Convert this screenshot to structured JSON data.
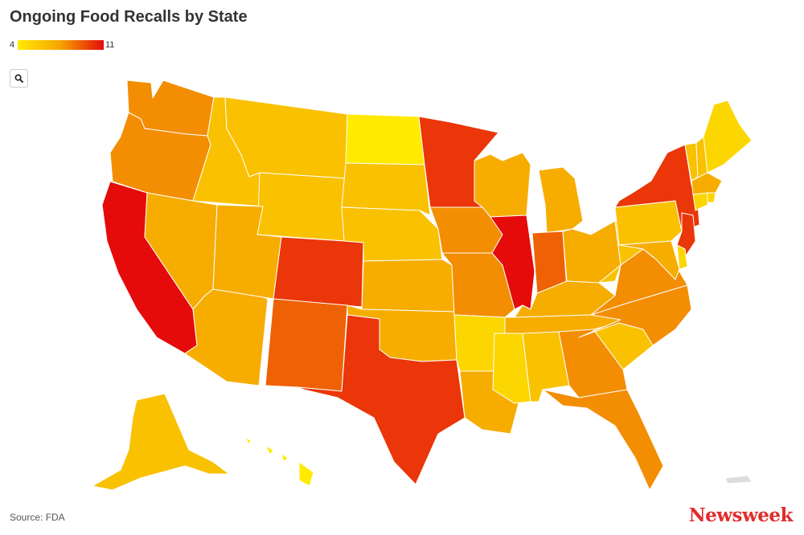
{
  "header": {
    "title": "Ongoing Food Recalls by State"
  },
  "legend": {
    "min_label": "4",
    "max_label": "11",
    "color_low": "#ffea00",
    "color_mid": "#f5a300",
    "color_high": "#e50b0b"
  },
  "toolbar": {
    "search_icon": "magnifier-icon"
  },
  "footer": {
    "source": "Source: FDA",
    "brand": "Newsweek",
    "brand_color": "#e12d2d"
  },
  "colors": {
    "no_data": "#dddddd"
  },
  "chart_data": {
    "type": "choropleth",
    "title": "Ongoing Food Recalls by State",
    "scale": {
      "min": 4,
      "max": 11
    },
    "states": [
      {
        "code": "WA",
        "value": 8
      },
      {
        "code": "OR",
        "value": 8
      },
      {
        "code": "CA",
        "value": 11
      },
      {
        "code": "ID",
        "value": 6
      },
      {
        "code": "NV",
        "value": 7
      },
      {
        "code": "AZ",
        "value": 7
      },
      {
        "code": "MT",
        "value": 6
      },
      {
        "code": "WY",
        "value": 6
      },
      {
        "code": "UT",
        "value": 7
      },
      {
        "code": "CO",
        "value": 10
      },
      {
        "code": "NM",
        "value": 9
      },
      {
        "code": "ND",
        "value": 4
      },
      {
        "code": "SD",
        "value": 6
      },
      {
        "code": "NE",
        "value": 6
      },
      {
        "code": "KS",
        "value": 7
      },
      {
        "code": "OK",
        "value": 7
      },
      {
        "code": "TX",
        "value": 10
      },
      {
        "code": "MN",
        "value": 10
      },
      {
        "code": "IA",
        "value": 8
      },
      {
        "code": "MO",
        "value": 8
      },
      {
        "code": "AR",
        "value": 5
      },
      {
        "code": "LA",
        "value": 7
      },
      {
        "code": "WI",
        "value": 7
      },
      {
        "code": "IL",
        "value": 11
      },
      {
        "code": "MI",
        "value": 7
      },
      {
        "code": "IN",
        "value": 9
      },
      {
        "code": "OH",
        "value": 7
      },
      {
        "code": "KY",
        "value": 7
      },
      {
        "code": "TN",
        "value": 7
      },
      {
        "code": "MS",
        "value": 5
      },
      {
        "code": "AL",
        "value": 6
      },
      {
        "code": "GA",
        "value": 8
      },
      {
        "code": "FL",
        "value": 8
      },
      {
        "code": "SC",
        "value": 6
      },
      {
        "code": "NC",
        "value": 8
      },
      {
        "code": "VA",
        "value": 8
      },
      {
        "code": "WV",
        "value": 6
      },
      {
        "code": "PA",
        "value": 6
      },
      {
        "code": "NY",
        "value": 10
      },
      {
        "code": "VT",
        "value": 6
      },
      {
        "code": "NH",
        "value": 6
      },
      {
        "code": "ME",
        "value": 5
      },
      {
        "code": "MA",
        "value": 7
      },
      {
        "code": "RI",
        "value": 5
      },
      {
        "code": "CT",
        "value": 5
      },
      {
        "code": "NJ",
        "value": 10
      },
      {
        "code": "DE",
        "value": 5
      },
      {
        "code": "MD",
        "value": 7
      },
      {
        "code": "AK",
        "value": 6
      },
      {
        "code": "HI",
        "value": 4
      },
      {
        "code": "PR",
        "value": null
      }
    ]
  }
}
